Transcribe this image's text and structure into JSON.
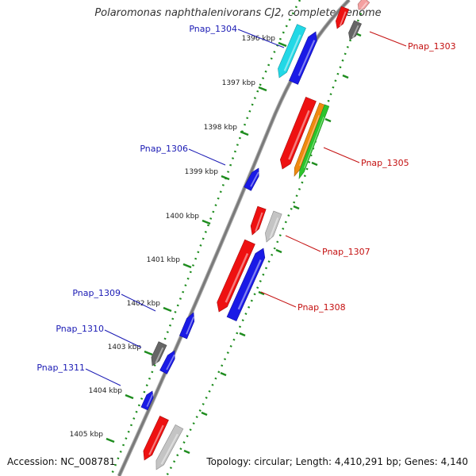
{
  "title": "Polaromonas naphthalenivorans CJ2, complete genome",
  "footer": {
    "accession": "Accession: NC_008781",
    "topology": "Topology: circular; Length: 4,410,291 bp; Genes: 4,140"
  },
  "colors": {
    "backbone": "#7a7a7a",
    "ticks": "#1e8c1e",
    "left_labels": "#1a1ab4",
    "right_labels": "#c41010",
    "red": "#ee1111",
    "blue": "#1a1ae6",
    "cyan": "#22d8e6",
    "gray": "#666666",
    "lightgray": "#c4c4c4",
    "orange": "#f08a10",
    "green": "#2cc42c",
    "pink": "#f4a0a0"
  },
  "ruler_labels": [
    "1396 kbp",
    "1397 kbp",
    "1398 kbp",
    "1399 kbp",
    "1400 kbp",
    "1401 kbp",
    "1402 kbp",
    "1403 kbp",
    "1404 kbp",
    "1405 kbp"
  ],
  "genes": [
    {
      "name": "Pnap_1303",
      "side": "right"
    },
    {
      "name": "Pnap_1304",
      "side": "left"
    },
    {
      "name": "Pnap_1305",
      "side": "right"
    },
    {
      "name": "Pnap_1306",
      "side": "left"
    },
    {
      "name": "Pnap_1307",
      "side": "right"
    },
    {
      "name": "Pnap_1308",
      "side": "right"
    },
    {
      "name": "Pnap_1309",
      "side": "left"
    },
    {
      "name": "Pnap_1310",
      "side": "left"
    },
    {
      "name": "Pnap_1311",
      "side": "left"
    }
  ]
}
